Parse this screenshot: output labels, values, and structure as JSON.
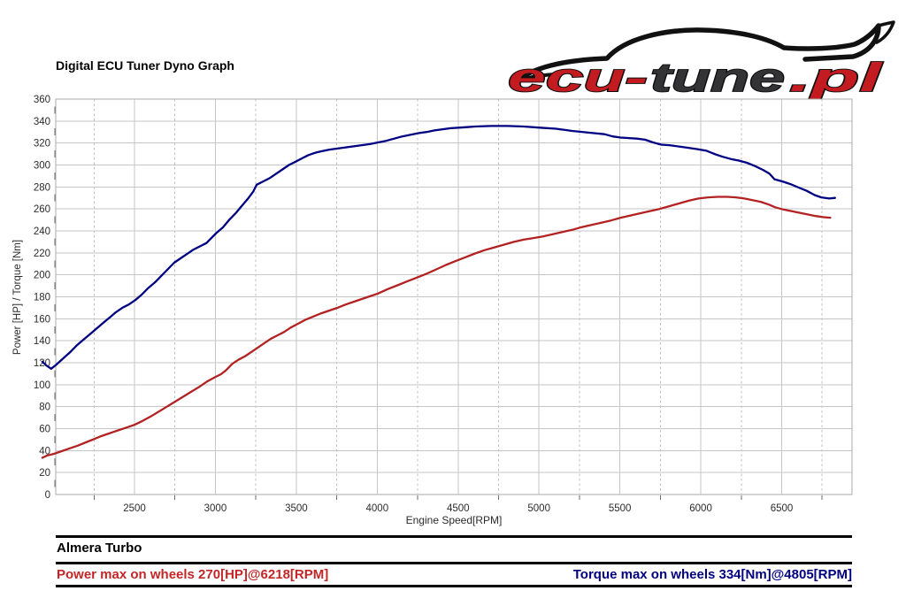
{
  "title": "Digital ECU Tuner Dyno Graph",
  "logo": {
    "part_ecu": "ecu-",
    "part_tune": "tune",
    "part_pl": ".pl",
    "red": "#c31c20",
    "dark": "#333336"
  },
  "footer": {
    "vehicle": "Almera Turbo",
    "power_max": "Power max on wheels 270[HP]@6218[RPM]",
    "torque_max": "Torque max on wheels 334[Nm]@4805[RPM]",
    "power_color": "#c22627",
    "torque_color": "#00007f"
  },
  "chart_data": {
    "type": "line",
    "title": "Digital ECU Tuner Dyno Graph",
    "xlabel": "Engine Speed[RPM]",
    "ylabel": "Power [HP] / Torque [Nm]",
    "xlim": [
      2013,
      6934
    ],
    "ylim": [
      0,
      360
    ],
    "grid": true,
    "legend_position": "none",
    "x_ticks": [
      2500,
      3000,
      3500,
      4000,
      4500,
      5000,
      5500,
      6000,
      6500
    ],
    "x_minor_ticks": [
      2250,
      2750,
      3250,
      3750,
      4250,
      4750,
      5250,
      5750,
      6250,
      6750
    ],
    "y_ticks": [
      0,
      20,
      40,
      60,
      80,
      100,
      120,
      140,
      160,
      180,
      200,
      220,
      240,
      260,
      280,
      300,
      320,
      340,
      360
    ],
    "series": [
      {
        "name": "Torque [Nm]",
        "color": "#000082",
        "max_label": "334[Nm]@4805[RPM]",
        "points": [
          [
            1930,
            121
          ],
          [
            1955,
            117.5
          ],
          [
            1985,
            114.5
          ],
          [
            2015,
            118
          ],
          [
            2045,
            122
          ],
          [
            2075,
            126
          ],
          [
            2105,
            130
          ],
          [
            2145,
            136
          ],
          [
            2185,
            141
          ],
          [
            2225,
            146
          ],
          [
            2265,
            151
          ],
          [
            2305,
            156
          ],
          [
            2345,
            161
          ],
          [
            2385,
            166
          ],
          [
            2425,
            170
          ],
          [
            2465,
            173
          ],
          [
            2505,
            177
          ],
          [
            2545,
            182
          ],
          [
            2585,
            188
          ],
          [
            2625,
            193
          ],
          [
            2665,
            199
          ],
          [
            2705,
            205
          ],
          [
            2745,
            211
          ],
          [
            2785,
            215
          ],
          [
            2825,
            219
          ],
          [
            2865,
            223
          ],
          [
            2905,
            226
          ],
          [
            2945,
            229
          ],
          [
            2965,
            232
          ],
          [
            3005,
            238
          ],
          [
            3045,
            243
          ],
          [
            3085,
            250
          ],
          [
            3125,
            256
          ],
          [
            3165,
            263
          ],
          [
            3205,
            270
          ],
          [
            3235,
            276
          ],
          [
            3255,
            282
          ],
          [
            3295,
            285
          ],
          [
            3335,
            288
          ],
          [
            3375,
            292
          ],
          [
            3415,
            296
          ],
          [
            3455,
            300
          ],
          [
            3495,
            303
          ],
          [
            3535,
            306
          ],
          [
            3575,
            309
          ],
          [
            3615,
            311
          ],
          [
            3655,
            312.5
          ],
          [
            3705,
            314
          ],
          [
            3755,
            315
          ],
          [
            3805,
            316
          ],
          [
            3855,
            317
          ],
          [
            3905,
            318
          ],
          [
            3955,
            319
          ],
          [
            4005,
            320.5
          ],
          [
            4055,
            322
          ],
          [
            4105,
            324
          ],
          [
            4155,
            326
          ],
          [
            4205,
            327.5
          ],
          [
            4255,
            329
          ],
          [
            4305,
            330
          ],
          [
            4355,
            331.5
          ],
          [
            4405,
            332.5
          ],
          [
            4455,
            333.5
          ],
          [
            4505,
            334
          ],
          [
            4555,
            334.5
          ],
          [
            4605,
            335
          ],
          [
            4705,
            335.5
          ],
          [
            4805,
            335.5
          ],
          [
            4905,
            335
          ],
          [
            5005,
            334
          ],
          [
            5105,
            333
          ],
          [
            5205,
            331
          ],
          [
            5305,
            329.5
          ],
          [
            5405,
            328
          ],
          [
            5455,
            326
          ],
          [
            5505,
            325
          ],
          [
            5605,
            324
          ],
          [
            5655,
            323
          ],
          [
            5705,
            320.5
          ],
          [
            5755,
            318.5
          ],
          [
            5805,
            318
          ],
          [
            5905,
            316
          ],
          [
            5975,
            314.5
          ],
          [
            6035,
            313
          ],
          [
            6085,
            310
          ],
          [
            6135,
            307.5
          ],
          [
            6185,
            305.5
          ],
          [
            6235,
            304
          ],
          [
            6285,
            302
          ],
          [
            6335,
            299
          ],
          [
            6385,
            295.5
          ],
          [
            6425,
            292
          ],
          [
            6455,
            287
          ],
          [
            6505,
            285
          ],
          [
            6555,
            282.5
          ],
          [
            6605,
            279.5
          ],
          [
            6655,
            276.5
          ],
          [
            6705,
            272.5
          ],
          [
            6745,
            270.5
          ],
          [
            6795,
            269.5
          ],
          [
            6830,
            270
          ]
        ]
      },
      {
        "name": "Power [HP]",
        "color": "#b22222",
        "max_label": "270[HP]@6218[RPM]",
        "points": [
          [
            1930,
            33.5
          ],
          [
            1960,
            35.5
          ],
          [
            2000,
            37
          ],
          [
            2050,
            39.5
          ],
          [
            2100,
            42
          ],
          [
            2150,
            44.5
          ],
          [
            2200,
            47.5
          ],
          [
            2250,
            50.5
          ],
          [
            2300,
            53.5
          ],
          [
            2350,
            56
          ],
          [
            2400,
            58.5
          ],
          [
            2450,
            61
          ],
          [
            2500,
            63.5
          ],
          [
            2550,
            67
          ],
          [
            2600,
            71
          ],
          [
            2650,
            75.5
          ],
          [
            2700,
            80
          ],
          [
            2750,
            84.5
          ],
          [
            2800,
            89
          ],
          [
            2850,
            93.5
          ],
          [
            2900,
            98
          ],
          [
            2950,
            103
          ],
          [
            3000,
            107
          ],
          [
            3035,
            109.5
          ],
          [
            3065,
            113
          ],
          [
            3105,
            119
          ],
          [
            3145,
            123
          ],
          [
            3185,
            126
          ],
          [
            3225,
            130
          ],
          [
            3265,
            134
          ],
          [
            3305,
            138
          ],
          [
            3345,
            142
          ],
          [
            3385,
            145
          ],
          [
            3425,
            148
          ],
          [
            3465,
            152
          ],
          [
            3505,
            155
          ],
          [
            3555,
            159
          ],
          [
            3605,
            162
          ],
          [
            3655,
            165
          ],
          [
            3705,
            167.5
          ],
          [
            3755,
            170
          ],
          [
            3805,
            173
          ],
          [
            3855,
            175.5
          ],
          [
            3905,
            178
          ],
          [
            3955,
            180.5
          ],
          [
            4005,
            183
          ],
          [
            4065,
            187
          ],
          [
            4125,
            190.5
          ],
          [
            4185,
            194
          ],
          [
            4245,
            197.5
          ],
          [
            4305,
            201
          ],
          [
            4365,
            205
          ],
          [
            4425,
            209
          ],
          [
            4485,
            212.5
          ],
          [
            4545,
            216
          ],
          [
            4605,
            219.5
          ],
          [
            4665,
            222.5
          ],
          [
            4725,
            225
          ],
          [
            4785,
            227.5
          ],
          [
            4845,
            230
          ],
          [
            4905,
            232
          ],
          [
            4965,
            233.5
          ],
          [
            5025,
            235
          ],
          [
            5085,
            237
          ],
          [
            5145,
            239
          ],
          [
            5205,
            241
          ],
          [
            5265,
            243.5
          ],
          [
            5325,
            245.5
          ],
          [
            5385,
            247.5
          ],
          [
            5445,
            249.5
          ],
          [
            5505,
            252
          ],
          [
            5565,
            254
          ],
          [
            5625,
            256
          ],
          [
            5685,
            258
          ],
          [
            5745,
            260
          ],
          [
            5805,
            262.5
          ],
          [
            5865,
            265
          ],
          [
            5925,
            267.5
          ],
          [
            5985,
            269.5
          ],
          [
            6045,
            270.5
          ],
          [
            6105,
            271
          ],
          [
            6165,
            271
          ],
          [
            6218,
            270.5
          ],
          [
            6270,
            269.5
          ],
          [
            6320,
            268
          ],
          [
            6370,
            266.5
          ],
          [
            6420,
            264
          ],
          [
            6460,
            261.5
          ],
          [
            6510,
            259.5
          ],
          [
            6560,
            258
          ],
          [
            6610,
            256.5
          ],
          [
            6660,
            255
          ],
          [
            6710,
            253.5
          ],
          [
            6760,
            252.5
          ],
          [
            6800,
            252
          ]
        ]
      }
    ]
  }
}
